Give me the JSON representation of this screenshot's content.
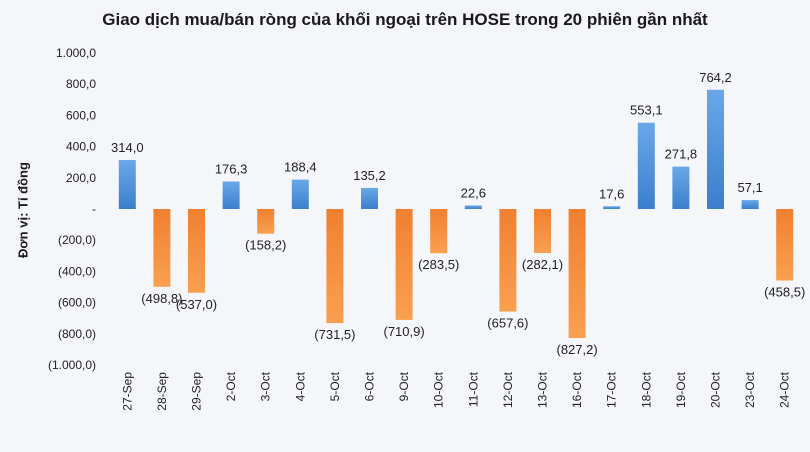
{
  "chart_data": {
    "type": "bar",
    "title": "Giao dịch mua/bán ròng của khối ngoại trên HOSE trong 20 phiên gần nhất",
    "ylabel": "Đơn vị: Tỉ đồng",
    "xlabel": "",
    "ylim": [
      -1000,
      1000
    ],
    "yticks": [
      1000,
      800,
      600,
      400,
      200,
      0,
      -200,
      -400,
      -600,
      -800,
      -1000
    ],
    "ytick_labels": [
      "1.000,0",
      "800,0",
      "600,0",
      "400,0",
      "200,0",
      "-",
      "(200,0)",
      "(400,0)",
      "(600,0)",
      "(800,0)",
      "(1.000,0)"
    ],
    "categories": [
      "27-Sep",
      "28-Sep",
      "29-Sep",
      "2-Oct",
      "3-Oct",
      "4-Oct",
      "5-Oct",
      "6-Oct",
      "9-Oct",
      "10-Oct",
      "11-Oct",
      "12-Oct",
      "13-Oct",
      "16-Oct",
      "17-Oct",
      "18-Oct",
      "19-Oct",
      "20-Oct",
      "23-Oct",
      "24-Oct"
    ],
    "values": [
      314.0,
      -498.8,
      -537.0,
      176.3,
      -158.2,
      188.4,
      -731.5,
      135.2,
      -710.9,
      -283.5,
      22.6,
      -657.6,
      -282.1,
      -827.2,
      17.6,
      553.1,
      271.8,
      764.2,
      57.1,
      -458.5
    ],
    "value_labels": [
      "314,0",
      "(498,8)",
      "(537,0)",
      "176,3",
      "(158,2)",
      "188,4",
      "(731,5)",
      "135,2",
      "(710,9)",
      "(283,5)",
      "22,6",
      "(657,6)",
      "(282,1)",
      "(827,2)",
      "17,6",
      "553,1",
      "271,8",
      "764,2",
      "57,1",
      "(458,5)"
    ],
    "colors": {
      "positive": "#4a90d9",
      "negative": "#f58a2c"
    },
    "grid": false,
    "legend": "none"
  }
}
